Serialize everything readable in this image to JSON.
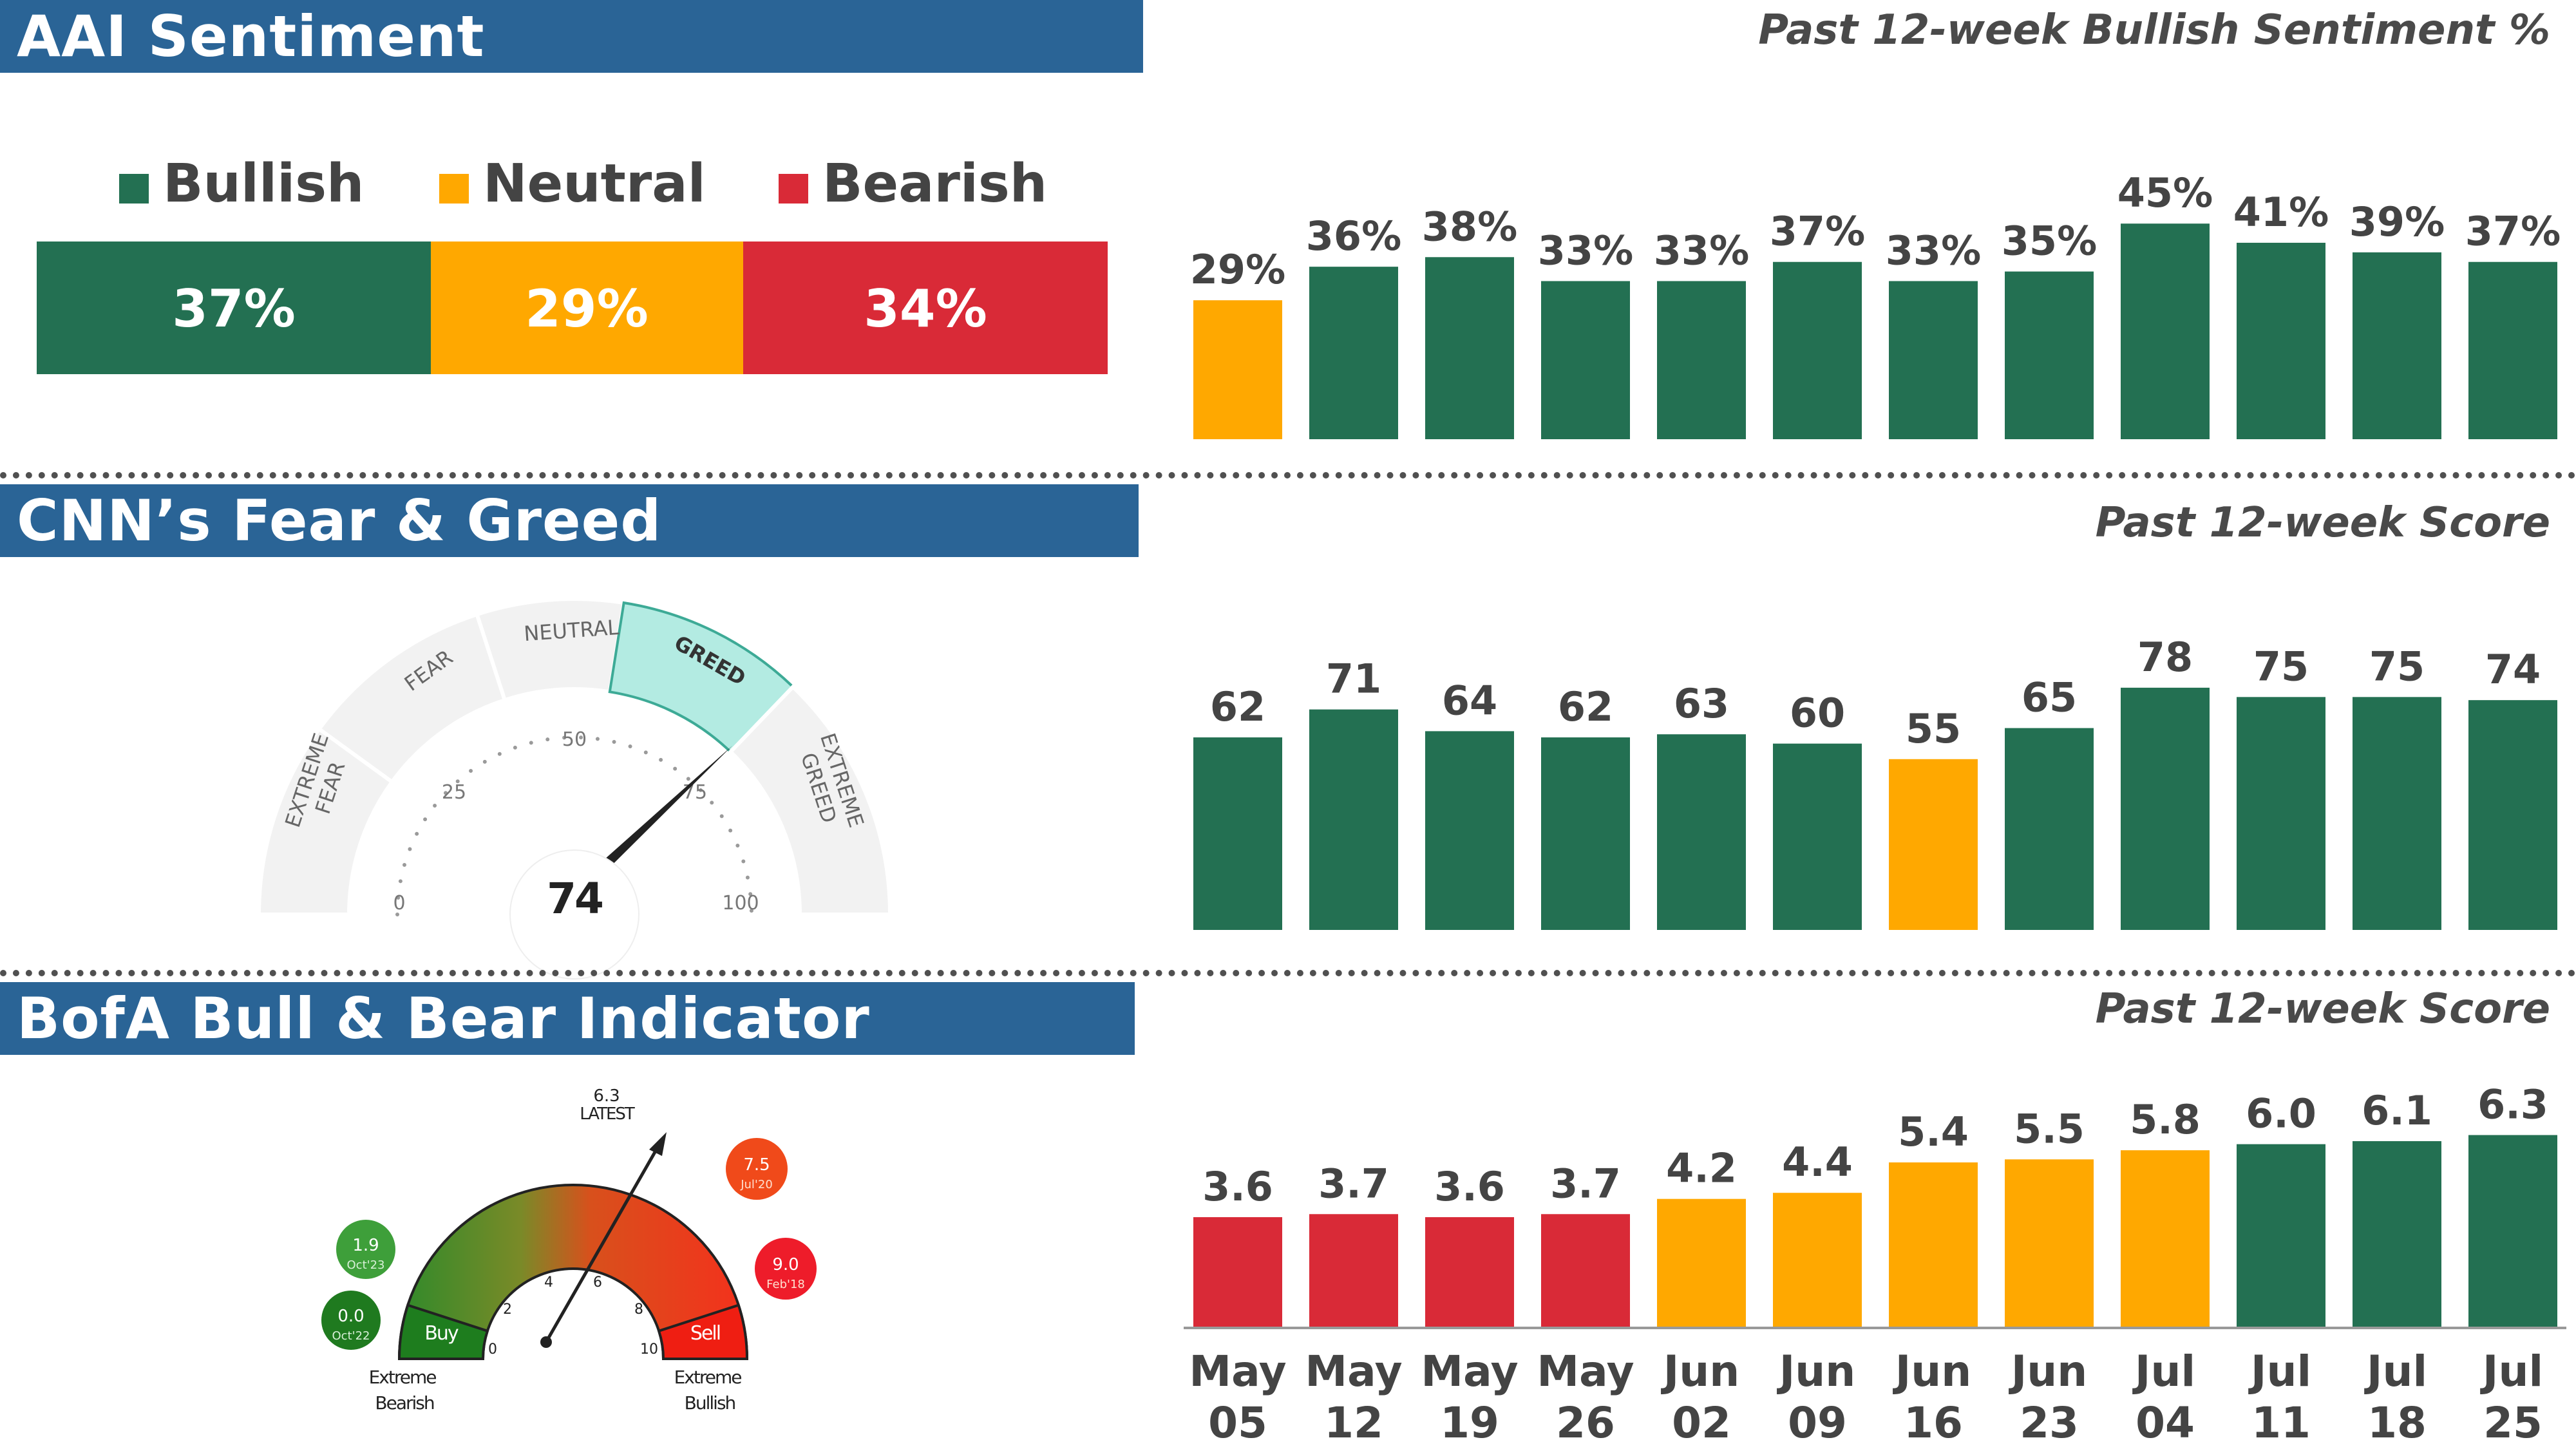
{
  "colors": {
    "green": "#237052",
    "orange": "#ffa800",
    "red": "#d92a37",
    "blue": "#2a6496",
    "text": "#444444",
    "teal": "#b3ebe2"
  },
  "aai": {
    "title": "AAI Sentiment",
    "subtitle": "Past 12-week Bullish Sentiment %",
    "legend": [
      "Bullish",
      "Neutral",
      "Bearish"
    ],
    "current": [
      {
        "label": "37%",
        "value": 37
      },
      {
        "label": "29%",
        "value": 29
      },
      {
        "label": "34%",
        "value": 34
      }
    ]
  },
  "cnn": {
    "title": "CNN’s Fear & Greed",
    "subtitle": "Past 12-week Score",
    "segments": [
      "EXTREME FEAR",
      "FEAR",
      "NEUTRAL",
      "GREED",
      "EXTREME GREED"
    ],
    "ticks": [
      "0",
      "25",
      "50",
      "75",
      "100"
    ],
    "score": "74"
  },
  "bofa": {
    "title": "BofA Bull & Bear Indicator",
    "subtitle": "Past 12-week Score",
    "gauge_ticks": [
      "0",
      "2",
      "4",
      "6",
      "8",
      "10"
    ],
    "buy": "Buy",
    "sell": "Sell",
    "left_label": [
      "Extreme",
      "Bearish"
    ],
    "right_label": [
      "Extreme",
      "Bullish"
    ],
    "latest_value": "6.3",
    "latest_label": "LATEST",
    "markers": [
      {
        "value": "1.9",
        "date": "Oct'23"
      },
      {
        "value": "0.0",
        "date": "Oct'22"
      },
      {
        "value": "7.5",
        "date": "Jul'20"
      },
      {
        "value": "9.0",
        "date": "Feb'18"
      }
    ]
  },
  "chart_data": [
    {
      "type": "bar",
      "title": "Past 12-week Bullish Sentiment %",
      "categories": [
        "May 05",
        "May 12",
        "May 19",
        "May 26",
        "Jun 02",
        "Jun 09",
        "Jun 16",
        "Jun 23",
        "Jul 04",
        "Jul 11",
        "Jul 18",
        "Jul 25"
      ],
      "values": [
        29,
        36,
        38,
        33,
        33,
        37,
        33,
        35,
        45,
        41,
        39,
        37
      ],
      "labels": [
        "29%",
        "36%",
        "38%",
        "33%",
        "33%",
        "37%",
        "33%",
        "35%",
        "45%",
        "41%",
        "39%",
        "37%"
      ],
      "colors": [
        "orange",
        "green",
        "green",
        "green",
        "green",
        "green",
        "green",
        "green",
        "green",
        "green",
        "green",
        "green"
      ],
      "ylim": [
        0,
        50
      ]
    },
    {
      "type": "bar",
      "title": "Past 12-week Score",
      "categories": [
        "May 05",
        "May 12",
        "May 19",
        "May 26",
        "Jun 02",
        "Jun 09",
        "Jun 16",
        "Jun 23",
        "Jul 04",
        "Jul 11",
        "Jul 18",
        "Jul 25"
      ],
      "values": [
        62,
        71,
        64,
        62,
        63,
        60,
        55,
        65,
        78,
        75,
        75,
        74
      ],
      "labels": [
        "62",
        "71",
        "64",
        "62",
        "63",
        "60",
        "55",
        "65",
        "78",
        "75",
        "75",
        "74"
      ],
      "colors": [
        "green",
        "green",
        "green",
        "green",
        "green",
        "green",
        "orange",
        "green",
        "green",
        "green",
        "green",
        "green"
      ],
      "ylim": [
        0,
        90
      ]
    },
    {
      "type": "bar",
      "title": "Past 12-week Score",
      "categories": [
        "May 05",
        "May 12",
        "May 19",
        "May 26",
        "Jun 02",
        "Jun 09",
        "Jun 16",
        "Jun 23",
        "Jul 04",
        "Jul 11",
        "Jul 18",
        "Jul 25"
      ],
      "values": [
        3.6,
        3.7,
        3.6,
        3.7,
        4.2,
        4.4,
        5.4,
        5.5,
        5.8,
        6.0,
        6.1,
        6.3
      ],
      "labels": [
        "3.6",
        "3.7",
        "3.6",
        "3.7",
        "4.2",
        "4.4",
        "5.4",
        "5.5",
        "5.8",
        "6.0",
        "6.1",
        "6.3"
      ],
      "colors": [
        "red",
        "red",
        "red",
        "red",
        "orange",
        "orange",
        "orange",
        "orange",
        "orange",
        "green",
        "green",
        "green"
      ],
      "ylim": [
        0,
        7.2
      ]
    }
  ]
}
